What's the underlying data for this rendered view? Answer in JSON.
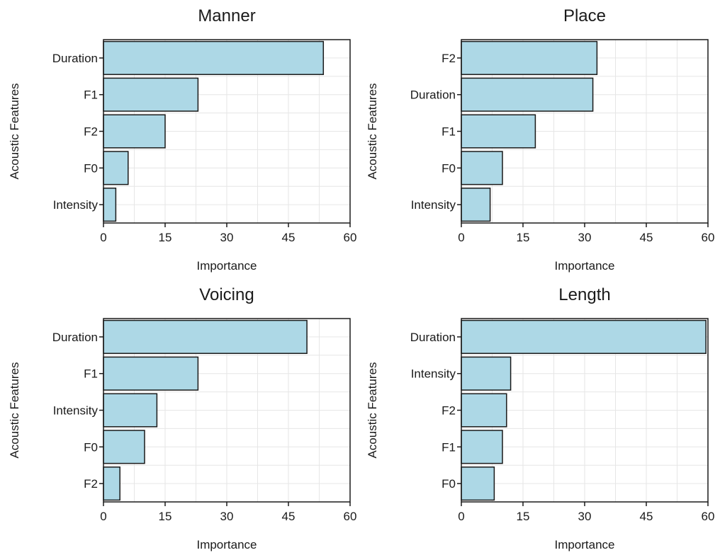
{
  "chart_data": [
    {
      "type": "bar",
      "orientation": "horizontal",
      "title": "Manner",
      "xlabel": "Importance",
      "ylabel": "Acoustic Features",
      "xlim": [
        0,
        60
      ],
      "xticks": [
        "0",
        "15",
        "30",
        "45",
        "60"
      ],
      "categories": [
        "Duration",
        "F1",
        "F2",
        "F0",
        "Intensity"
      ],
      "values": [
        53.5,
        23,
        15,
        6,
        3
      ],
      "bar_color": "#add8e6",
      "grid": true
    },
    {
      "type": "bar",
      "orientation": "horizontal",
      "title": "Place",
      "xlabel": "Importance",
      "ylabel": "Acoustic Features",
      "xlim": [
        0,
        60
      ],
      "xticks": [
        "0",
        "15",
        "30",
        "45",
        "60"
      ],
      "categories": [
        "F2",
        "Duration",
        "F1",
        "F0",
        "Intensity"
      ],
      "values": [
        33,
        32,
        18,
        10,
        7
      ],
      "bar_color": "#add8e6",
      "grid": true
    },
    {
      "type": "bar",
      "orientation": "horizontal",
      "title": "Voicing",
      "xlabel": "Importance",
      "ylabel": "Acoustic Features",
      "xlim": [
        0,
        60
      ],
      "xticks": [
        "0",
        "15",
        "30",
        "45",
        "60"
      ],
      "categories": [
        "Duration",
        "F1",
        "Intensity",
        "F0",
        "F2"
      ],
      "values": [
        49.5,
        23,
        13,
        10,
        4
      ],
      "bar_color": "#add8e6",
      "grid": true
    },
    {
      "type": "bar",
      "orientation": "horizontal",
      "title": "Length",
      "xlabel": "Importance",
      "ylabel": "Acoustic Features",
      "xlim": [
        0,
        60
      ],
      "xticks": [
        "0",
        "15",
        "30",
        "45",
        "60"
      ],
      "categories": [
        "Duration",
        "Intensity",
        "F2",
        "F1",
        "F0"
      ],
      "values": [
        59.5,
        12,
        11,
        10,
        8
      ],
      "bar_color": "#add8e6",
      "grid": true
    }
  ]
}
